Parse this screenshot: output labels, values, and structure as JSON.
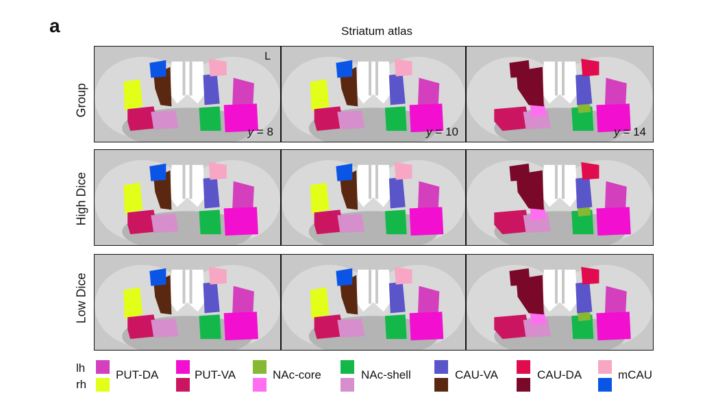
{
  "panel_letter": "a",
  "title": "Striatum atlas",
  "hemisphere_label": "L",
  "rows": [
    "Group",
    "High Dice",
    "Low Dice"
  ],
  "slices": [
    {
      "axis": "y",
      "value": "8"
    },
    {
      "axis": "y",
      "value": "10"
    },
    {
      "axis": "y",
      "value": "14"
    }
  ],
  "legend": {
    "lh": "lh",
    "rh": "rh",
    "items": [
      {
        "label": "PUT-DA",
        "lh_color": "#d43fbe",
        "rh_color": "#e2ff1a"
      },
      {
        "label": "PUT-VA",
        "lh_color": "#f20fd0",
        "rh_color": "#cc1560"
      },
      {
        "label": "NAc-core",
        "lh_color": "#86b832",
        "rh_color": "#ff6ef1"
      },
      {
        "label": "NAc-shell",
        "lh_color": "#14b84a",
        "rh_color": "#d68fcc"
      },
      {
        "label": "CAU-VA",
        "lh_color": "#5a55c8",
        "rh_color": "#5a2810"
      },
      {
        "label": "CAU-DA",
        "lh_color": "#e00c4e",
        "rh_color": "#7a0828"
      },
      {
        "label": "mCAU",
        "lh_color": "#f7a6c4",
        "rh_color": "#0a55e6"
      }
    ]
  }
}
